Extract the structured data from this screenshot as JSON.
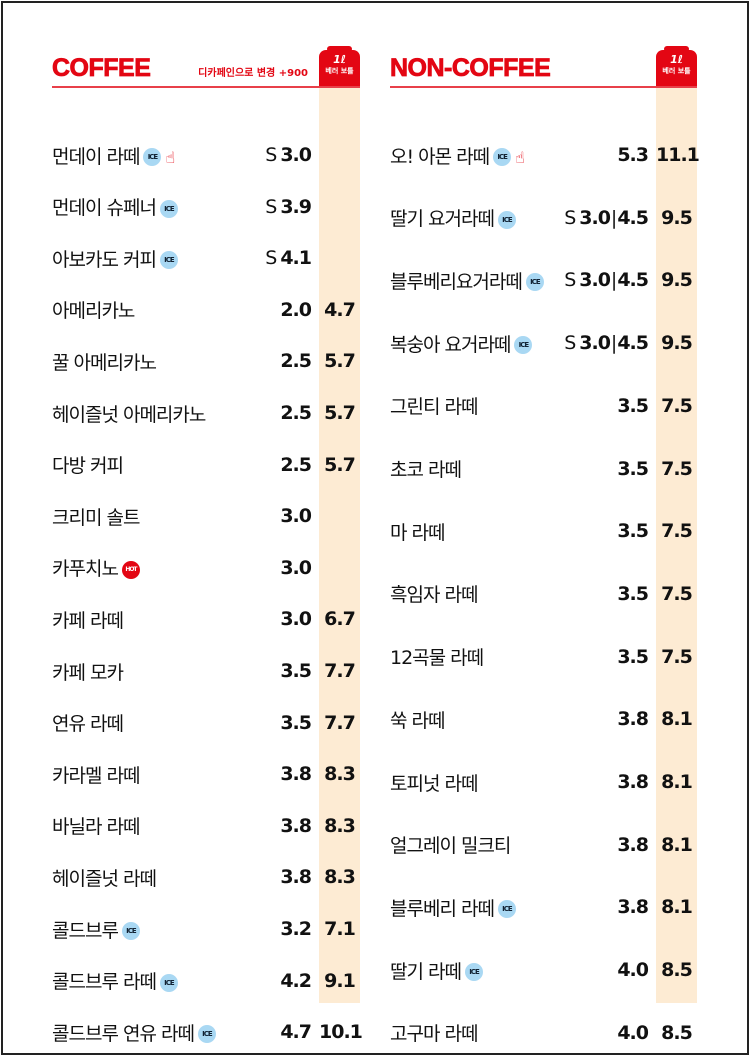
{
  "coffee": {
    "title": "COFFEE",
    "note": "디카페인으로 변경 +900",
    "bottle_size": "1ℓ",
    "bottle_label": "베러 보틀",
    "items": [
      {
        "name": "먼데이 라떼",
        "badge": "ICE",
        "recommend": true,
        "size": "S",
        "price": "3.0",
        "bottle": ""
      },
      {
        "name": "먼데이 슈페너",
        "badge": "ICE",
        "size": "S",
        "price": "3.9",
        "bottle": ""
      },
      {
        "name": "아보카도 커피",
        "badge": "ICE",
        "size": "S",
        "price": "4.1",
        "bottle": ""
      },
      {
        "name": "아메리카노",
        "price": "2.0",
        "bottle": "4.7"
      },
      {
        "name": "꿀 아메리카노",
        "price": "2.5",
        "bottle": "5.7"
      },
      {
        "name": "헤이즐넛 아메리카노",
        "price": "2.5",
        "bottle": "5.7"
      },
      {
        "name": "다방 커피",
        "price": "2.5",
        "bottle": "5.7"
      },
      {
        "name": "크리미 솔트",
        "price": "3.0",
        "bottle": ""
      },
      {
        "name": "카푸치노",
        "badge": "HOT",
        "price": "3.0",
        "bottle": ""
      },
      {
        "name": "카페 라떼",
        "price": "3.0",
        "bottle": "6.7"
      },
      {
        "name": "카페 모카",
        "price": "3.5",
        "bottle": "7.7"
      },
      {
        "name": "연유 라떼",
        "price": "3.5",
        "bottle": "7.7"
      },
      {
        "name": "카라멜 라떼",
        "price": "3.8",
        "bottle": "8.3"
      },
      {
        "name": "바닐라 라떼",
        "price": "3.8",
        "bottle": "8.3"
      },
      {
        "name": "헤이즐넛 라떼",
        "price": "3.8",
        "bottle": "8.3"
      },
      {
        "name": "콜드브루",
        "badge": "ICE",
        "price": "3.2",
        "bottle": "7.1"
      },
      {
        "name": "콜드브루 라떼",
        "badge": "ICE",
        "price": "4.2",
        "bottle": "9.1"
      },
      {
        "name": "콜드브루 연유 라떼",
        "badge": "ICE",
        "price": "4.7",
        "bottle": "10.1"
      }
    ]
  },
  "noncoffee": {
    "title": "NON-COFFEE",
    "bottle_size": "1ℓ",
    "bottle_label": "베러 보틀",
    "items": [
      {
        "name": "오! 아몬 라떼",
        "badge": "ICE",
        "recommend": true,
        "price": "5.3",
        "bottle": "11.1"
      },
      {
        "name": "딸기 요거라떼",
        "badge": "ICE",
        "size": "S",
        "price": "3.0",
        "price2": "4.5",
        "bottle": "9.5"
      },
      {
        "name": "블루베리요거라떼",
        "badge": "ICE",
        "size": "S",
        "price": "3.0",
        "price2": "4.5",
        "bottle": "9.5"
      },
      {
        "name": "복숭아 요거라떼",
        "badge": "ICE",
        "size": "S",
        "price": "3.0",
        "price2": "4.5",
        "bottle": "9.5"
      },
      {
        "name": "그린티 라떼",
        "price": "3.5",
        "bottle": "7.5"
      },
      {
        "name": "초코 라떼",
        "price": "3.5",
        "bottle": "7.5"
      },
      {
        "name": "마 라떼",
        "price": "3.5",
        "bottle": "7.5"
      },
      {
        "name": "흑임자 라떼",
        "price": "3.5",
        "bottle": "7.5"
      },
      {
        "name": "12곡물 라떼",
        "price": "3.5",
        "bottle": "7.5"
      },
      {
        "name": "쑥 라떼",
        "price": "3.8",
        "bottle": "8.1"
      },
      {
        "name": "토피넛 라떼",
        "price": "3.8",
        "bottle": "8.1"
      },
      {
        "name": "얼그레이 밀크티",
        "price": "3.8",
        "bottle": "8.1"
      },
      {
        "name": "블루베리 라떼",
        "badge": "ICE",
        "price": "3.8",
        "bottle": "8.1"
      },
      {
        "name": "딸기 라떼",
        "badge": "ICE",
        "price": "4.0",
        "bottle": "8.5"
      },
      {
        "name": "고구마 라떼",
        "price": "4.0",
        "bottle": "8.5"
      }
    ]
  },
  "colors": {
    "accent": "#e30613",
    "band": "#fdebd3",
    "ice": "#a9d8f3"
  }
}
